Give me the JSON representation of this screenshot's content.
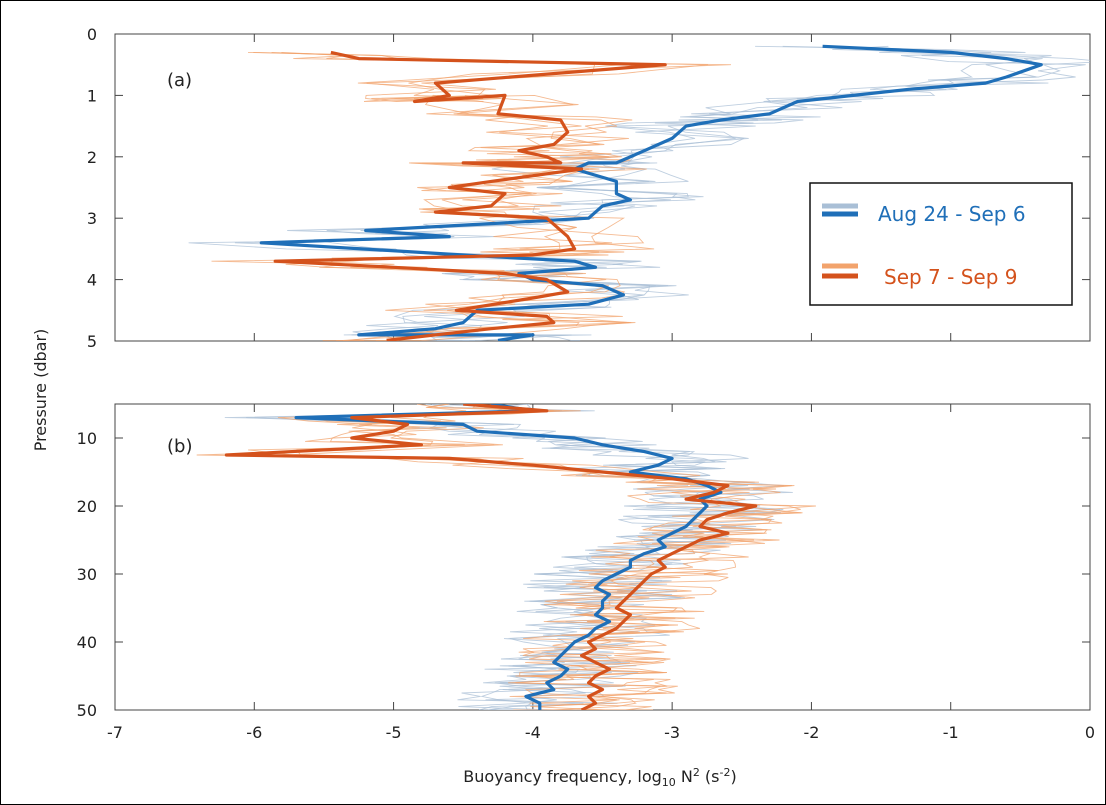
{
  "chart_data": {
    "type": "line",
    "xlabel": "Buoyancy frequency, log",
    "xlabel_sub": "10",
    "xlabel_unit": " N",
    "xlabel_sup": "2",
    "xlabel_unit2": " (s",
    "xlabel_sup2": "-2",
    "xlabel_end": ")",
    "ylabel": "Pressure (dbar)",
    "xlim": [
      -7,
      0
    ],
    "xticks": [
      "-7",
      "-6",
      "-5",
      "-4",
      "-3",
      "-2",
      "-1",
      "0"
    ],
    "legend": {
      "placement": "right",
      "entries": [
        {
          "label": "Aug 24 - Sep 6",
          "color": "#1f6fb8",
          "light_color": "#a9bfd6"
        },
        {
          "label": "Sep 7 - Sep 9",
          "color": "#d4521c",
          "light_color": "#f2a36c"
        }
      ]
    },
    "panels": [
      {
        "label": "(a)",
        "ylim": [
          0,
          5
        ],
        "yticks": [
          "0",
          "1",
          "2",
          "3",
          "4",
          "5"
        ],
        "series": [
          {
            "name": "Aug 24 - Sep 6",
            "color": "#1f6fb8",
            "points": [
              [
                -1.92,
                0.2
              ],
              [
                -1.0,
                0.3
              ],
              [
                -0.6,
                0.4
              ],
              [
                -0.35,
                0.5
              ],
              [
                -0.6,
                0.7
              ],
              [
                -0.75,
                0.8
              ],
              [
                -1.3,
                0.9
              ],
              [
                -1.7,
                1.0
              ],
              [
                -2.1,
                1.1
              ],
              [
                -2.3,
                1.3
              ],
              [
                -2.65,
                1.4
              ],
              [
                -2.9,
                1.5
              ],
              [
                -3.0,
                1.7
              ],
              [
                -3.2,
                1.9
              ],
              [
                -3.4,
                2.1
              ],
              [
                -3.6,
                2.1
              ],
              [
                -3.7,
                2.2
              ],
              [
                -3.4,
                2.4
              ],
              [
                -3.4,
                2.6
              ],
              [
                -3.3,
                2.7
              ],
              [
                -3.5,
                2.8
              ],
              [
                -3.6,
                3.0
              ],
              [
                -5.2,
                3.2
              ],
              [
                -4.6,
                3.3
              ],
              [
                -5.95,
                3.4
              ],
              [
                -4.5,
                3.6
              ],
              [
                -3.7,
                3.7
              ],
              [
                -3.55,
                3.8
              ],
              [
                -4.1,
                3.9
              ],
              [
                -4.0,
                4.0
              ],
              [
                -3.5,
                4.1
              ],
              [
                -3.35,
                4.25
              ],
              [
                -3.6,
                4.4
              ],
              [
                -4.4,
                4.5
              ],
              [
                -4.5,
                4.7
              ],
              [
                -4.7,
                4.8
              ],
              [
                -5.25,
                4.9
              ],
              [
                -4.0,
                4.9
              ],
              [
                -4.25,
                4.99
              ]
            ]
          },
          {
            "name": "Sep 7 - Sep 9",
            "color": "#d4521c",
            "points": [
              [
                -5.45,
                0.3
              ],
              [
                -5.25,
                0.4
              ],
              [
                -3.05,
                0.5
              ],
              [
                -4.7,
                0.8
              ],
              [
                -4.6,
                1.0
              ],
              [
                -4.85,
                1.1
              ],
              [
                -4.2,
                1.0
              ],
              [
                -4.25,
                1.3
              ],
              [
                -3.8,
                1.4
              ],
              [
                -3.75,
                1.6
              ],
              [
                -3.85,
                1.8
              ],
              [
                -4.1,
                1.9
              ],
              [
                -3.9,
                2.0
              ],
              [
                -3.8,
                2.1
              ],
              [
                -4.5,
                2.1
              ],
              [
                -3.65,
                2.2
              ],
              [
                -4.3,
                2.4
              ],
              [
                -4.6,
                2.5
              ],
              [
                -4.2,
                2.6
              ],
              [
                -4.3,
                2.8
              ],
              [
                -4.7,
                2.9
              ],
              [
                -3.9,
                3.0
              ],
              [
                -3.75,
                3.3
              ],
              [
                -3.7,
                3.5
              ],
              [
                -4.0,
                3.6
              ],
              [
                -5.85,
                3.7
              ],
              [
                -5.0,
                3.8
              ],
              [
                -4.2,
                3.9
              ],
              [
                -3.9,
                4.0
              ],
              [
                -3.75,
                4.2
              ],
              [
                -4.0,
                4.3
              ],
              [
                -4.55,
                4.5
              ],
              [
                -3.9,
                4.6
              ],
              [
                -3.85,
                4.7
              ],
              [
                -4.3,
                4.8
              ],
              [
                -5.05,
                4.99
              ]
            ]
          }
        ]
      },
      {
        "label": "(b)",
        "ylim": [
          5,
          50
        ],
        "yticks": [
          "10",
          "20",
          "30",
          "40",
          "50"
        ],
        "series": [
          {
            "name": "Aug 24 - Sep 6",
            "color": "#1f6fb8",
            "points": [
              [
                -4.3,
                5
              ],
              [
                -4.0,
                6
              ],
              [
                -5.7,
                7
              ],
              [
                -4.5,
                8
              ],
              [
                -4.4,
                9
              ],
              [
                -3.7,
                10
              ],
              [
                -3.5,
                11
              ],
              [
                -3.2,
                12
              ],
              [
                -3.0,
                13
              ],
              [
                -3.1,
                14
              ],
              [
                -3.3,
                15
              ],
              [
                -2.9,
                16
              ],
              [
                -2.75,
                17
              ],
              [
                -2.65,
                18
              ],
              [
                -2.8,
                19
              ],
              [
                -2.75,
                20
              ],
              [
                -2.8,
                21
              ],
              [
                -2.85,
                22
              ],
              [
                -2.9,
                23
              ],
              [
                -3.0,
                24
              ],
              [
                -3.1,
                25
              ],
              [
                -3.05,
                26
              ],
              [
                -3.2,
                27
              ],
              [
                -3.3,
                28
              ],
              [
                -3.3,
                29
              ],
              [
                -3.4,
                30
              ],
              [
                -3.5,
                31
              ],
              [
                -3.55,
                32
              ],
              [
                -3.45,
                33
              ],
              [
                -3.5,
                34
              ],
              [
                -3.5,
                35
              ],
              [
                -3.55,
                36
              ],
              [
                -3.45,
                37
              ],
              [
                -3.55,
                38
              ],
              [
                -3.6,
                39
              ],
              [
                -3.7,
                40
              ],
              [
                -3.75,
                41
              ],
              [
                -3.8,
                42
              ],
              [
                -3.85,
                43
              ],
              [
                -3.75,
                44
              ],
              [
                -3.8,
                45
              ],
              [
                -3.9,
                46
              ],
              [
                -3.85,
                47
              ],
              [
                -4.05,
                48
              ],
              [
                -3.95,
                49
              ],
              [
                -3.95,
                50
              ]
            ]
          },
          {
            "name": "Sep 7 - Sep 9",
            "color": "#d4521c",
            "points": [
              [
                -4.5,
                5
              ],
              [
                -3.9,
                6
              ],
              [
                -5.3,
                7
              ],
              [
                -4.9,
                8
              ],
              [
                -5.0,
                9
              ],
              [
                -5.3,
                10
              ],
              [
                -4.8,
                11
              ],
              [
                -6.2,
                12.5
              ],
              [
                -4.6,
                13
              ],
              [
                -4.0,
                14
              ],
              [
                -3.5,
                15
              ],
              [
                -3.0,
                16
              ],
              [
                -2.6,
                17
              ],
              [
                -2.7,
                18
              ],
              [
                -2.9,
                19
              ],
              [
                -2.4,
                20
              ],
              [
                -2.6,
                21
              ],
              [
                -2.75,
                22
              ],
              [
                -2.8,
                23
              ],
              [
                -2.6,
                24
              ],
              [
                -2.8,
                25
              ],
              [
                -2.9,
                26
              ],
              [
                -3.0,
                27
              ],
              [
                -3.1,
                28
              ],
              [
                -3.05,
                29
              ],
              [
                -3.15,
                30
              ],
              [
                -3.2,
                31
              ],
              [
                -3.25,
                32
              ],
              [
                -3.3,
                33
              ],
              [
                -3.35,
                34
              ],
              [
                -3.4,
                35
              ],
              [
                -3.3,
                36
              ],
              [
                -3.35,
                37
              ],
              [
                -3.4,
                38
              ],
              [
                -3.5,
                39
              ],
              [
                -3.6,
                40
              ],
              [
                -3.55,
                41
              ],
              [
                -3.65,
                42
              ],
              [
                -3.55,
                43
              ],
              [
                -3.45,
                44
              ],
              [
                -3.55,
                45
              ],
              [
                -3.6,
                46
              ],
              [
                -3.5,
                47
              ],
              [
                -3.6,
                48
              ],
              [
                -3.55,
                49
              ],
              [
                -3.65,
                50
              ]
            ]
          }
        ]
      }
    ]
  }
}
